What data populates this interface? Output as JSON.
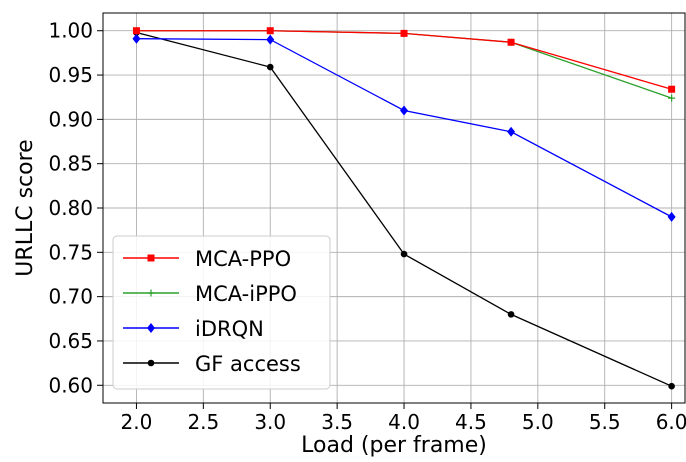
{
  "chart_data": {
    "type": "line",
    "title": "",
    "xlabel": "Load (per frame)",
    "ylabel": "URLLC score",
    "xlim": [
      1.75,
      6.1
    ],
    "ylim": [
      0.58,
      1.02
    ],
    "xticks": [
      2.0,
      2.5,
      3.0,
      3.5,
      4.0,
      4.5,
      5.0,
      5.5,
      6.0
    ],
    "xtick_labels": [
      "2.0",
      "2.5",
      "3.0",
      "3.5",
      "4.0",
      "4.5",
      "5.0",
      "5.5",
      "6.0"
    ],
    "yticks": [
      0.6,
      0.65,
      0.7,
      0.75,
      0.8,
      0.85,
      0.9,
      0.95,
      1.0
    ],
    "ytick_labels": [
      "0.60",
      "0.65",
      "0.70",
      "0.75",
      "0.80",
      "0.85",
      "0.90",
      "0.95",
      "1.00"
    ],
    "grid": true,
    "legend_position": "lower-left",
    "series": [
      {
        "name": "MCA-PPO",
        "color": "#ff0000",
        "marker": "square",
        "x": [
          2.0,
          3.0,
          4.0,
          4.8,
          6.0
        ],
        "y": [
          1.0,
          1.0,
          0.997,
          0.987,
          0.934
        ]
      },
      {
        "name": "MCA-iPPO",
        "color": "#2ca02c",
        "marker": "plus",
        "x": [
          2.0,
          3.0,
          4.0,
          4.8,
          6.0
        ],
        "y": [
          1.0,
          1.0,
          0.997,
          0.987,
          0.924
        ]
      },
      {
        "name": "iDRQN",
        "color": "#0000ff",
        "marker": "diamond",
        "x": [
          2.0,
          3.0,
          4.0,
          4.8,
          6.0
        ],
        "y": [
          0.991,
          0.99,
          0.91,
          0.886,
          0.79
        ]
      },
      {
        "name": "GF access",
        "color": "#000000",
        "marker": "circle",
        "x": [
          2.0,
          3.0,
          4.0,
          4.8,
          6.0
        ],
        "y": [
          0.998,
          0.959,
          0.748,
          0.68,
          0.599
        ]
      }
    ]
  }
}
